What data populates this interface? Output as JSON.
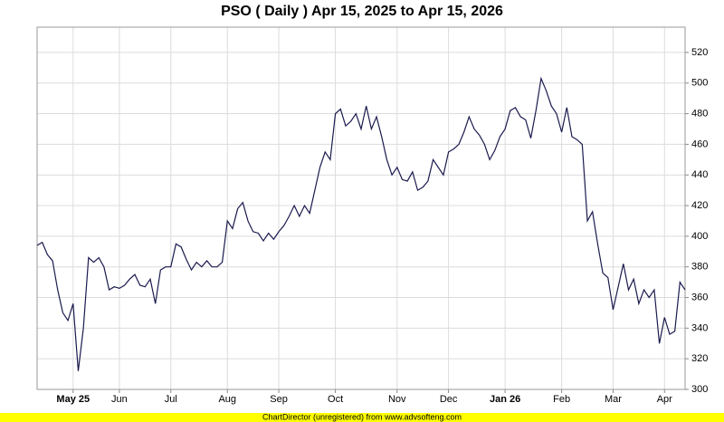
{
  "chart_data": {
    "type": "line",
    "title": "PSO ( Daily ) Apr 15, 2025 to Apr 15, 2026",
    "footer": "ChartDirector (unregistered) from www.advsofteng.com",
    "categories": [
      null,
      null,
      null,
      null,
      null,
      null,
      null,
      "May 25",
      null,
      null,
      null,
      null,
      null,
      null,
      null,
      null,
      "Jun",
      null,
      null,
      null,
      null,
      null,
      null,
      null,
      null,
      null,
      "Jul",
      null,
      null,
      null,
      null,
      null,
      null,
      null,
      null,
      null,
      null,
      "Aug",
      null,
      null,
      null,
      null,
      null,
      null,
      null,
      null,
      null,
      "Sep",
      null,
      null,
      null,
      null,
      null,
      null,
      null,
      null,
      null,
      null,
      "Oct",
      null,
      null,
      null,
      null,
      null,
      null,
      null,
      null,
      null,
      null,
      null,
      "Nov",
      null,
      null,
      null,
      null,
      null,
      null,
      null,
      null,
      null,
      "Dec",
      null,
      null,
      null,
      null,
      null,
      null,
      null,
      null,
      null,
      null,
      "Jan 26",
      null,
      null,
      null,
      null,
      null,
      null,
      null,
      null,
      null,
      null,
      "Feb",
      null,
      null,
      null,
      null,
      null,
      null,
      null,
      null,
      null,
      "Mar",
      null,
      null,
      null,
      null,
      null,
      null,
      null,
      null,
      null,
      "Apr",
      null,
      null,
      null,
      null
    ],
    "values": [
      394,
      396,
      388,
      384,
      365,
      350,
      345,
      356,
      312,
      340,
      386,
      383,
      386,
      380,
      365,
      367,
      366,
      368,
      372,
      375,
      368,
      367,
      372,
      356,
      378,
      380,
      380,
      395,
      393,
      385,
      378,
      383,
      380,
      384,
      380,
      380,
      383,
      410,
      405,
      418,
      422,
      410,
      403,
      402,
      397,
      402,
      398,
      403,
      407,
      413,
      420,
      413,
      420,
      415,
      430,
      445,
      455,
      450,
      480,
      483,
      472,
      475,
      480,
      470,
      485,
      470,
      478,
      465,
      450,
      440,
      445,
      437,
      436,
      442,
      430,
      432,
      436,
      450,
      445,
      440,
      455,
      457,
      460,
      468,
      478,
      470,
      466,
      460,
      450,
      456,
      465,
      470,
      482,
      484,
      478,
      476,
      464,
      482,
      503,
      495,
      485,
      480,
      468,
      484,
      465,
      463,
      460,
      410,
      416,
      395,
      376,
      373,
      352,
      367,
      382,
      365,
      372,
      356,
      365,
      360,
      365,
      330,
      347,
      336,
      338,
      370,
      365
    ],
    "color": "#1a1a4e",
    "ylim": [
      300,
      536.5
    ],
    "yticks": [
      300,
      320,
      340,
      360,
      380,
      400,
      420,
      440,
      460,
      480,
      500,
      520
    ],
    "grid": true
  }
}
